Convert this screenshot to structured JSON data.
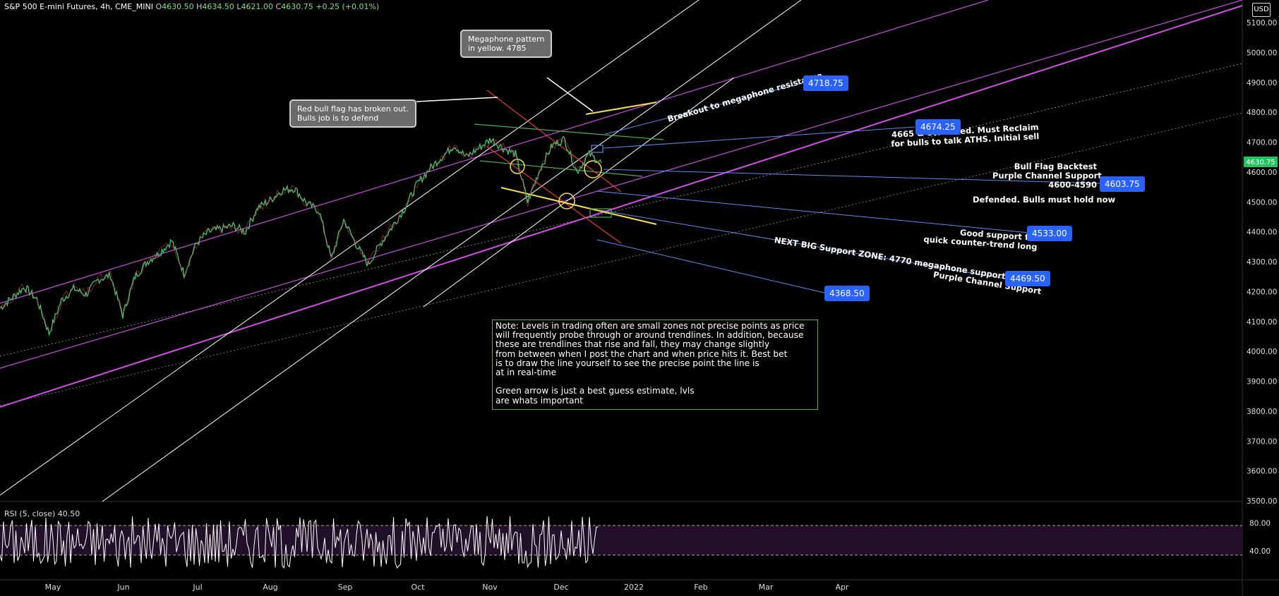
{
  "header": {
    "symbol": "S&P 500 E-mini Futures, 4h, CME_MINI",
    "open_k": "O",
    "open": "4630.50",
    "high_k": "H",
    "high": "4634.50",
    "low_k": "L",
    "low": "4621.00",
    "close_k": "C",
    "close": "4630.75",
    "change": "+0.25 (+0.01%)"
  },
  "currency_button": "USD",
  "colors": {
    "background": "#000000",
    "purple_channel": "#d64ce8",
    "green": "#4caf50",
    "yellow": "#f5e04a",
    "red": "#e53935",
    "blue_line": "#5d8cf7",
    "label_blue": "#2962ff",
    "last_price_green": "#22c55e"
  },
  "chart_data": {
    "type": "line",
    "instrument": "S&P 500 E-mini Futures",
    "interval": "4h",
    "y_axis": {
      "ticks": [
        "5100.00",
        "5000.00",
        "4900.00",
        "4800.00",
        "4700.00",
        "4600.00",
        "4500.00",
        "4400.00",
        "4300.00",
        "4200.00",
        "4100.00",
        "4000.00",
        "3900.00",
        "3800.00",
        "3700.00",
        "3600.00",
        "3500.00"
      ],
      "tick_values": [
        5100,
        5000,
        4900,
        4800,
        4700,
        4600,
        4500,
        4400,
        4300,
        4200,
        4100,
        4000,
        3900,
        3800,
        3700,
        3600,
        3500
      ],
      "ylim": [
        3500,
        5150
      ]
    },
    "x_axis": {
      "ticks": [
        "May",
        "Jun",
        "Jul",
        "Aug",
        "Sep",
        "Oct",
        "Nov",
        "Dec",
        "2022",
        "Feb",
        "Mar",
        "Apr"
      ]
    },
    "last_price": "4630.75",
    "price_path": [
      [
        0,
        4145
      ],
      [
        1,
        4180
      ],
      [
        2,
        4215
      ],
      [
        3,
        4175
      ],
      [
        4,
        4060
      ],
      [
        5,
        4170
      ],
      [
        6,
        4210
      ],
      [
        7,
        4190
      ],
      [
        8,
        4240
      ],
      [
        9,
        4255
      ],
      [
        10,
        4120
      ],
      [
        11,
        4250
      ],
      [
        12,
        4300
      ],
      [
        13,
        4330
      ],
      [
        14,
        4370
      ],
      [
        15,
        4260
      ],
      [
        16,
        4360
      ],
      [
        17,
        4400
      ],
      [
        18,
        4410
      ],
      [
        19,
        4420
      ],
      [
        20,
        4400
      ],
      [
        21,
        4480
      ],
      [
        22,
        4505
      ],
      [
        23,
        4540
      ],
      [
        24,
        4545
      ],
      [
        25,
        4495
      ],
      [
        26,
        4470
      ],
      [
        27,
        4310
      ],
      [
        28,
        4440
      ],
      [
        29,
        4360
      ],
      [
        30,
        4290
      ],
      [
        31,
        4360
      ],
      [
        32,
        4420
      ],
      [
        33,
        4480
      ],
      [
        34,
        4560
      ],
      [
        35,
        4610
      ],
      [
        36,
        4650
      ],
      [
        37,
        4690
      ],
      [
        38,
        4650
      ],
      [
        39,
        4680
      ],
      [
        40,
        4710
      ],
      [
        41,
        4680
      ],
      [
        42,
        4660
      ],
      [
        43,
        4500
      ],
      [
        44,
        4610
      ],
      [
        45,
        4690
      ],
      [
        46,
        4710
      ],
      [
        47,
        4600
      ],
      [
        48,
        4660
      ],
      [
        49,
        4630
      ]
    ],
    "x_dates": [
      "May",
      "",
      "",
      "",
      "",
      "",
      "Jun",
      "",
      "",
      "",
      "",
      "Jul",
      "",
      "",
      "",
      "",
      "",
      "Aug",
      "",
      "",
      "",
      "",
      "Sep",
      "",
      "",
      "",
      "",
      "",
      "Oct",
      "",
      "",
      "",
      "",
      "Nov",
      "",
      "",
      "",
      "",
      "",
      "Dec",
      "",
      "",
      "",
      "",
      "",
      "",
      "",
      "",
      "",
      ""
    ],
    "price_labels": [
      {
        "text": "4718.75",
        "value": 4718.75
      },
      {
        "text": "4674.25",
        "value": 4674.25
      },
      {
        "text": "4603.75",
        "value": 4603.75
      },
      {
        "text": "4533.00",
        "value": 4533.0
      },
      {
        "text": "4469.50",
        "value": 4469.5
      },
      {
        "text": "4368.50",
        "value": 4368.5
      }
    ],
    "rsi": {
      "title": "RSI (5, close)",
      "value": "40.50",
      "ticks": [
        "80.00",
        "40.00"
      ],
      "tick_values": [
        80,
        40
      ],
      "ylim": [
        0,
        100
      ]
    }
  },
  "annotations": {
    "megaphone_callout": "Megaphone pattern\nin yellow. 4785",
    "bullflag_callout": "Red bull flag has broken out.\nBulls job is to defend",
    "breakout_text": "Breakout to megaphone resistance",
    "failed_text": "4665 & 80. Failed. Must Reclaim\nfor bulls to talk ATHS. Initial sell",
    "backtest_text": "Bull Flag Backtest\nPurple Channel Support\n4600-4590",
    "defended_text": "Defended. Bulls must hold now",
    "good_support_text": "Good support for\nquick counter-trend long",
    "next_support_text": "NEXT BIG Support ZONE: 4770 megaphone support at 4445\nPurple Channel Support",
    "note_text": "Note: Levels in trading often are small zones not precise points as price\nwill frequently probe through or around trendlines. In addition, because\nthese are trendlines that rise and fall, they may change slightly\nfrom between when I post the chart and when price hits it. Best bet\nis to draw the line yourself to see the precise point the line is\nat in real-time\n\nGreen arrow is just a best guess estimate, lvls\nare whats important"
  }
}
